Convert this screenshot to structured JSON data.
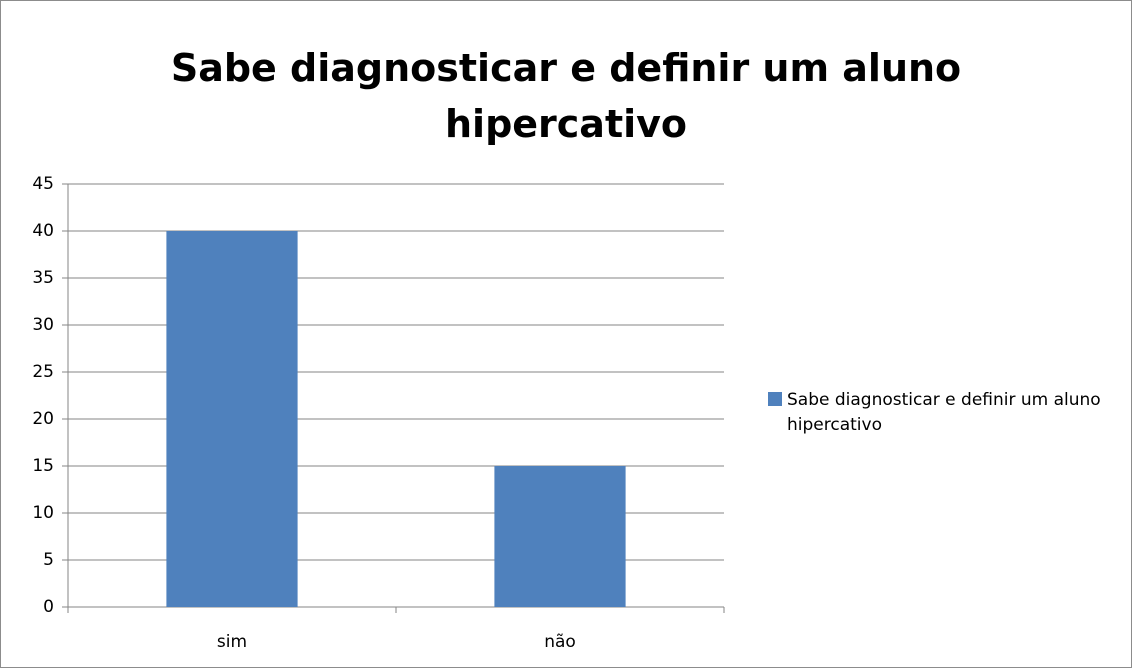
{
  "chart_data": {
    "type": "bar",
    "title": "Sabe diagnosticar e definir um aluno hipercativo",
    "categories": [
      "sim",
      "não"
    ],
    "series": [
      {
        "name": "Sabe diagnosticar e definir um aluno hipercativo",
        "color": "#4f81bd",
        "values": [
          40,
          15
        ]
      }
    ],
    "ylim": [
      0,
      45
    ],
    "yticks": [
      0,
      5,
      10,
      15,
      20,
      25,
      30,
      35,
      40,
      45
    ],
    "grid": true,
    "legend": "right"
  }
}
